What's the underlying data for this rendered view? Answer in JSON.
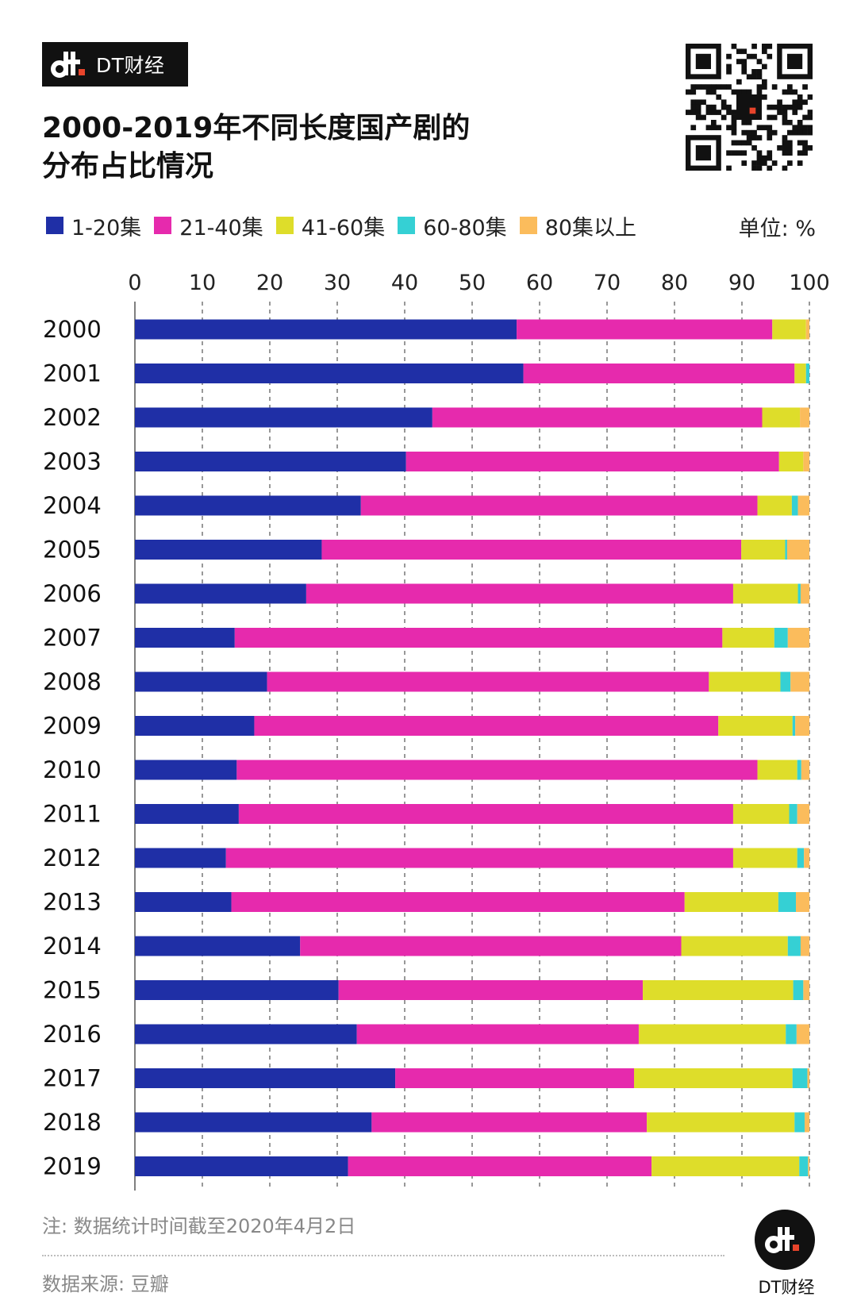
{
  "brand": {
    "name": "DT财经"
  },
  "title": "2000-2019年不同长度国产剧的\n分布占比情况",
  "unit": "单位: %",
  "note": "注: 数据统计时间截至2020年4月2日",
  "source": "数据来源: 豆瓣",
  "logo": {
    "name": "DT财经"
  },
  "icons": [
    "dt-logo-icon",
    "qr-code-icon"
  ],
  "colors": {
    "s1": "#1f2fa6",
    "s2": "#e62aad",
    "s3": "#dedd2a",
    "s4": "#35d0d4",
    "s5": "#fbbc5c"
  },
  "legend": [
    {
      "label": "1-20集",
      "color": "#1f2fa6"
    },
    {
      "label": "21-40集",
      "color": "#e62aad"
    },
    {
      "label": "41-60集",
      "color": "#dedd2a"
    },
    {
      "label": "60-80集",
      "color": "#35d0d4"
    },
    {
      "label": "80集以上",
      "color": "#fbbc5c"
    }
  ],
  "chart_data": {
    "type": "bar",
    "orientation": "horizontal",
    "stacked": true,
    "categories": [
      "2000",
      "2001",
      "2002",
      "2003",
      "2004",
      "2005",
      "2006",
      "2007",
      "2008",
      "2009",
      "2010",
      "2011",
      "2012",
      "2013",
      "2014",
      "2015",
      "2016",
      "2017",
      "2018",
      "2019"
    ],
    "xlim": [
      0,
      100
    ],
    "x_ticks": [
      0,
      10,
      20,
      30,
      40,
      50,
      60,
      70,
      80,
      90,
      100
    ],
    "grid": "vertical dashed",
    "legend_position": "top",
    "series": [
      {
        "name": "1-20集",
        "color": "#1f2fa6",
        "values": [
          56.6,
          57.6,
          44.1,
          40.2,
          33.5,
          27.7,
          25.4,
          14.8,
          19.6,
          17.7,
          15.1,
          15.4,
          13.5,
          14.3,
          24.5,
          30.2,
          32.9,
          38.6,
          35.1,
          31.6
        ]
      },
      {
        "name": "21-40集",
        "color": "#e62aad",
        "values": [
          37.9,
          40.2,
          48.9,
          55.3,
          58.8,
          62.2,
          63.3,
          72.3,
          65.5,
          68.8,
          77.2,
          73.3,
          75.2,
          67.2,
          56.5,
          45.1,
          41.8,
          35.4,
          40.8,
          45.0
        ]
      },
      {
        "name": "41-60集",
        "color": "#dedd2a",
        "values": [
          5.0,
          1.7,
          5.6,
          3.6,
          5.1,
          6.5,
          9.6,
          7.7,
          10.6,
          11.0,
          5.9,
          8.3,
          9.5,
          13.9,
          15.8,
          22.3,
          21.8,
          23.5,
          21.9,
          21.9
        ]
      },
      {
        "name": "60-80集",
        "color": "#35d0d4",
        "values": [
          0.0,
          0.5,
          0.0,
          0.0,
          0.9,
          0.3,
          0.4,
          2.0,
          1.5,
          0.4,
          0.6,
          1.2,
          1.0,
          2.6,
          1.9,
          1.5,
          1.6,
          2.2,
          1.5,
          1.3
        ]
      },
      {
        "name": "80集以上",
        "color": "#fbbc5c",
        "values": [
          0.5,
          0.0,
          1.4,
          0.9,
          1.7,
          3.3,
          1.3,
          3.2,
          2.8,
          2.1,
          1.2,
          1.8,
          0.8,
          2.0,
          1.3,
          0.9,
          1.9,
          0.3,
          0.7,
          0.2
        ]
      }
    ]
  }
}
